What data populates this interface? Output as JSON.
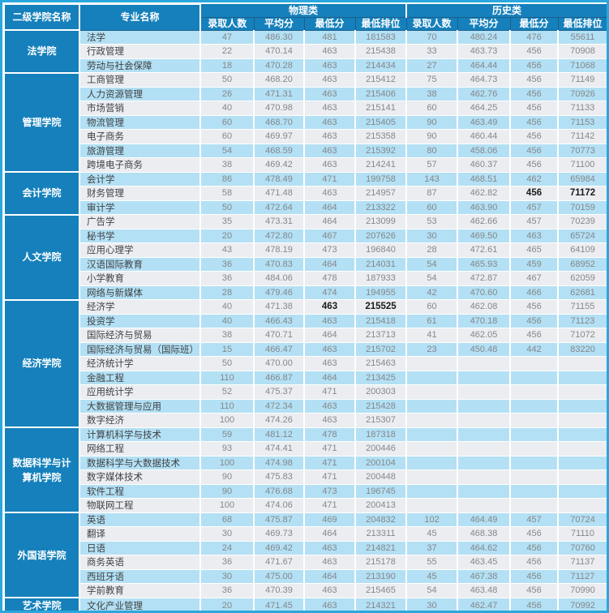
{
  "colors": {
    "header_blue": "#1580bb",
    "row_light_blue": "#b3e0f4",
    "row_light_gray": "#ebedf1",
    "outer_border_blue": "#2aa7de",
    "header_grid_line": "#1d5e8d",
    "number_text_gray": "#85878a",
    "major_text_dark": "#3f4144",
    "highlight_text": "#1b1b1b"
  },
  "table": {
    "header": {
      "college_col": "二级学院名称",
      "major_col": "专业名称",
      "group_physics": "物理类",
      "group_history": "历史类",
      "sub_columns": [
        "录取人数",
        "平均分",
        "最低分",
        "最低排位"
      ]
    },
    "colleges": [
      {
        "name": "法学院",
        "majors": [
          {
            "major": "法学",
            "physics": [
              "47",
              "486.30",
              "481",
              "181583"
            ],
            "history": [
              "70",
              "480.24",
              "476",
              "55611"
            ]
          },
          {
            "major": "行政管理",
            "physics": [
              "22",
              "470.14",
              "463",
              "215438"
            ],
            "history": [
              "33",
              "463.73",
              "456",
              "70908"
            ]
          },
          {
            "major": "劳动与社会保障",
            "physics": [
              "18",
              "470.28",
              "463",
              "214434"
            ],
            "history": [
              "27",
              "464.44",
              "456",
              "71068"
            ]
          }
        ]
      },
      {
        "name": "管理学院",
        "majors": [
          {
            "major": "工商管理",
            "physics": [
              "50",
              "468.20",
              "463",
              "215412"
            ],
            "history": [
              "75",
              "464.73",
              "456",
              "71149"
            ]
          },
          {
            "major": "人力资源管理",
            "physics": [
              "26",
              "471.31",
              "463",
              "215406"
            ],
            "history": [
              "38",
              "462.76",
              "456",
              "70926"
            ]
          },
          {
            "major": "市场营销",
            "physics": [
              "40",
              "470.98",
              "463",
              "215141"
            ],
            "history": [
              "60",
              "464.25",
              "456",
              "71133"
            ]
          },
          {
            "major": "物流管理",
            "physics": [
              "60",
              "468.70",
              "463",
              "215405"
            ],
            "history": [
              "90",
              "463.49",
              "456",
              "71153"
            ]
          },
          {
            "major": "电子商务",
            "physics": [
              "60",
              "469.97",
              "463",
              "215358"
            ],
            "history": [
              "90",
              "460.44",
              "456",
              "71142"
            ]
          },
          {
            "major": "旅游管理",
            "physics": [
              "54",
              "468.59",
              "463",
              "215392"
            ],
            "history": [
              "80",
              "458.06",
              "456",
              "70773"
            ]
          },
          {
            "major": "跨境电子商务",
            "physics": [
              "38",
              "469.42",
              "463",
              "214241"
            ],
            "history": [
              "57",
              "460.37",
              "456",
              "71100"
            ]
          }
        ]
      },
      {
        "name": "会计学院",
        "majors": [
          {
            "major": "会计学",
            "physics": [
              "86",
              "478.49",
              "471",
              "199758"
            ],
            "history": [
              "143",
              "468.51",
              "462",
              "65984"
            ]
          },
          {
            "major": "财务管理",
            "physics": [
              "58",
              "471.48",
              "463",
              "214957"
            ],
            "history": [
              "87",
              "462.82",
              "456",
              "71172"
            ],
            "highlight": "history"
          },
          {
            "major": "审计学",
            "physics": [
              "50",
              "472.64",
              "464",
              "213322"
            ],
            "history": [
              "60",
              "463.90",
              "457",
              "70159"
            ]
          }
        ]
      },
      {
        "name": "人文学院",
        "majors": [
          {
            "major": "广告学",
            "physics": [
              "35",
              "473.31",
              "464",
              "213099"
            ],
            "history": [
              "53",
              "462.66",
              "457",
              "70239"
            ]
          },
          {
            "major": "秘书学",
            "physics": [
              "20",
              "472.80",
              "467",
              "207626"
            ],
            "history": [
              "30",
              "469.50",
              "463",
              "65724"
            ]
          },
          {
            "major": "应用心理学",
            "physics": [
              "43",
              "478.19",
              "473",
              "196840"
            ],
            "history": [
              "28",
              "472.61",
              "465",
              "64109"
            ]
          },
          {
            "major": "汉语国际教育",
            "physics": [
              "36",
              "470.83",
              "464",
              "214031"
            ],
            "history": [
              "54",
              "465.93",
              "459",
              "68952"
            ]
          },
          {
            "major": "小学教育",
            "physics": [
              "36",
              "484.06",
              "478",
              "187933"
            ],
            "history": [
              "54",
              "472.87",
              "467",
              "62059"
            ]
          },
          {
            "major": "网络与新媒体",
            "physics": [
              "28",
              "479.46",
              "474",
              "194955"
            ],
            "history": [
              "42",
              "470.60",
              "466",
              "62681"
            ]
          }
        ]
      },
      {
        "name": "经济学院",
        "majors": [
          {
            "major": "经济学",
            "physics": [
              "40",
              "471.38",
              "463",
              "215525"
            ],
            "history": [
              "60",
              "462.08",
              "456",
              "71155"
            ],
            "highlight": "physics"
          },
          {
            "major": "投资学",
            "physics": [
              "40",
              "466.43",
              "463",
              "215418"
            ],
            "history": [
              "61",
              "470.18",
              "456",
              "71123"
            ]
          },
          {
            "major": "国际经济与贸易",
            "physics": [
              "38",
              "470.71",
              "464",
              "213713"
            ],
            "history": [
              "41",
              "462.05",
              "456",
              "71072"
            ]
          },
          {
            "major": "国际经济与贸易（国际班）",
            "physics": [
              "15",
              "466.47",
              "463",
              "215702"
            ],
            "history": [
              "23",
              "450.48",
              "442",
              "83220"
            ]
          },
          {
            "major": "经济统计学",
            "physics": [
              "50",
              "470.00",
              "463",
              "215463"
            ],
            "history": [
              "",
              "",
              "",
              ""
            ]
          },
          {
            "major": "金融工程",
            "physics": [
              "110",
              "466.87",
              "464",
              "213425"
            ],
            "history": [
              "",
              "",
              "",
              ""
            ]
          },
          {
            "major": "应用统计学",
            "physics": [
              "52",
              "475.37",
              "471",
              "200303"
            ],
            "history": [
              "",
              "",
              "",
              ""
            ]
          },
          {
            "major": "大数据管理与应用",
            "physics": [
              "110",
              "472.34",
              "463",
              "215428"
            ],
            "history": [
              "",
              "",
              "",
              ""
            ]
          },
          {
            "major": "数字经济",
            "physics": [
              "100",
              "474.26",
              "463",
              "215307"
            ],
            "history": [
              "",
              "",
              "",
              ""
            ]
          }
        ]
      },
      {
        "name": "数据科学与计算机学院",
        "majors": [
          {
            "major": "计算机科学与技术",
            "physics": [
              "59",
              "481.12",
              "478",
              "187318"
            ],
            "history": [
              "",
              "",
              "",
              ""
            ]
          },
          {
            "major": "网络工程",
            "physics": [
              "93",
              "474.41",
              "471",
              "200446"
            ],
            "history": [
              "",
              "",
              "",
              ""
            ]
          },
          {
            "major": "数据科学与大数据技术",
            "physics": [
              "100",
              "474.98",
              "471",
              "200104"
            ],
            "history": [
              "",
              "",
              "",
              ""
            ]
          },
          {
            "major": "数字媒体技术",
            "physics": [
              "90",
              "475.83",
              "471",
              "200448"
            ],
            "history": [
              "",
              "",
              "",
              ""
            ]
          },
          {
            "major": "软件工程",
            "physics": [
              "90",
              "476.68",
              "473",
              "196745"
            ],
            "history": [
              "",
              "",
              "",
              ""
            ]
          },
          {
            "major": "物联网工程",
            "physics": [
              "100",
              "474.06",
              "471",
              "200413"
            ],
            "history": [
              "",
              "",
              "",
              ""
            ]
          }
        ]
      },
      {
        "name": "外国语学院",
        "majors": [
          {
            "major": "英语",
            "physics": [
              "68",
              "475.87",
              "469",
              "204832"
            ],
            "history": [
              "102",
              "464.49",
              "457",
              "70724"
            ]
          },
          {
            "major": "翻译",
            "physics": [
              "30",
              "469.73",
              "464",
              "213311"
            ],
            "history": [
              "45",
              "468.38",
              "456",
              "71110"
            ]
          },
          {
            "major": "日语",
            "physics": [
              "24",
              "469.42",
              "463",
              "214821"
            ],
            "history": [
              "37",
              "464.62",
              "456",
              "70760"
            ]
          },
          {
            "major": "商务英语",
            "physics": [
              "36",
              "471.67",
              "463",
              "215178"
            ],
            "history": [
              "55",
              "463.45",
              "456",
              "71137"
            ]
          },
          {
            "major": "西班牙语",
            "physics": [
              "30",
              "475.00",
              "464",
              "213190"
            ],
            "history": [
              "45",
              "467.38",
              "456",
              "71127"
            ]
          },
          {
            "major": "学前教育",
            "physics": [
              "36",
              "470.39",
              "463",
              "215465"
            ],
            "history": [
              "54",
              "463.48",
              "456",
              "70990"
            ]
          }
        ]
      },
      {
        "name": "艺术学院",
        "majors": [
          {
            "major": "文化产业管理",
            "physics": [
              "20",
              "471.45",
              "463",
              "214321"
            ],
            "history": [
              "30",
              "462.47",
              "456",
              "70992"
            ]
          }
        ]
      }
    ]
  }
}
